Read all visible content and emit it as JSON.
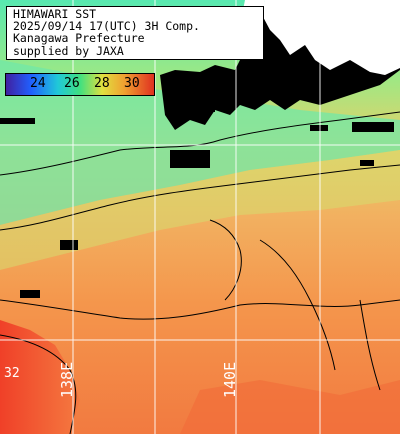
{
  "header": {
    "line1": "HIMAWARI SST",
    "line2": "2025/09/14 17(UTC) 3H Comp.",
    "line3": "Kanagawa Prefecture",
    "line4": "supplied by JAXA"
  },
  "legend": {
    "ticks": [
      "24",
      "26",
      "28",
      "30"
    ],
    "colors": [
      "#4020a0",
      "#2060ff",
      "#20c8d8",
      "#40e080",
      "#e0e040",
      "#f0a030",
      "#e03020"
    ]
  },
  "grid": {
    "lon_labels": [
      "138E",
      "140E"
    ]
  },
  "annotations": {
    "temp_label": "32"
  },
  "colors": {
    "land": "#000000",
    "warm_sea": "#f09a50",
    "hot_sea": "#f05a30",
    "cool_sea": "#60e8a0",
    "mid_sea": "#d8d868",
    "grid": "#ffffff"
  }
}
